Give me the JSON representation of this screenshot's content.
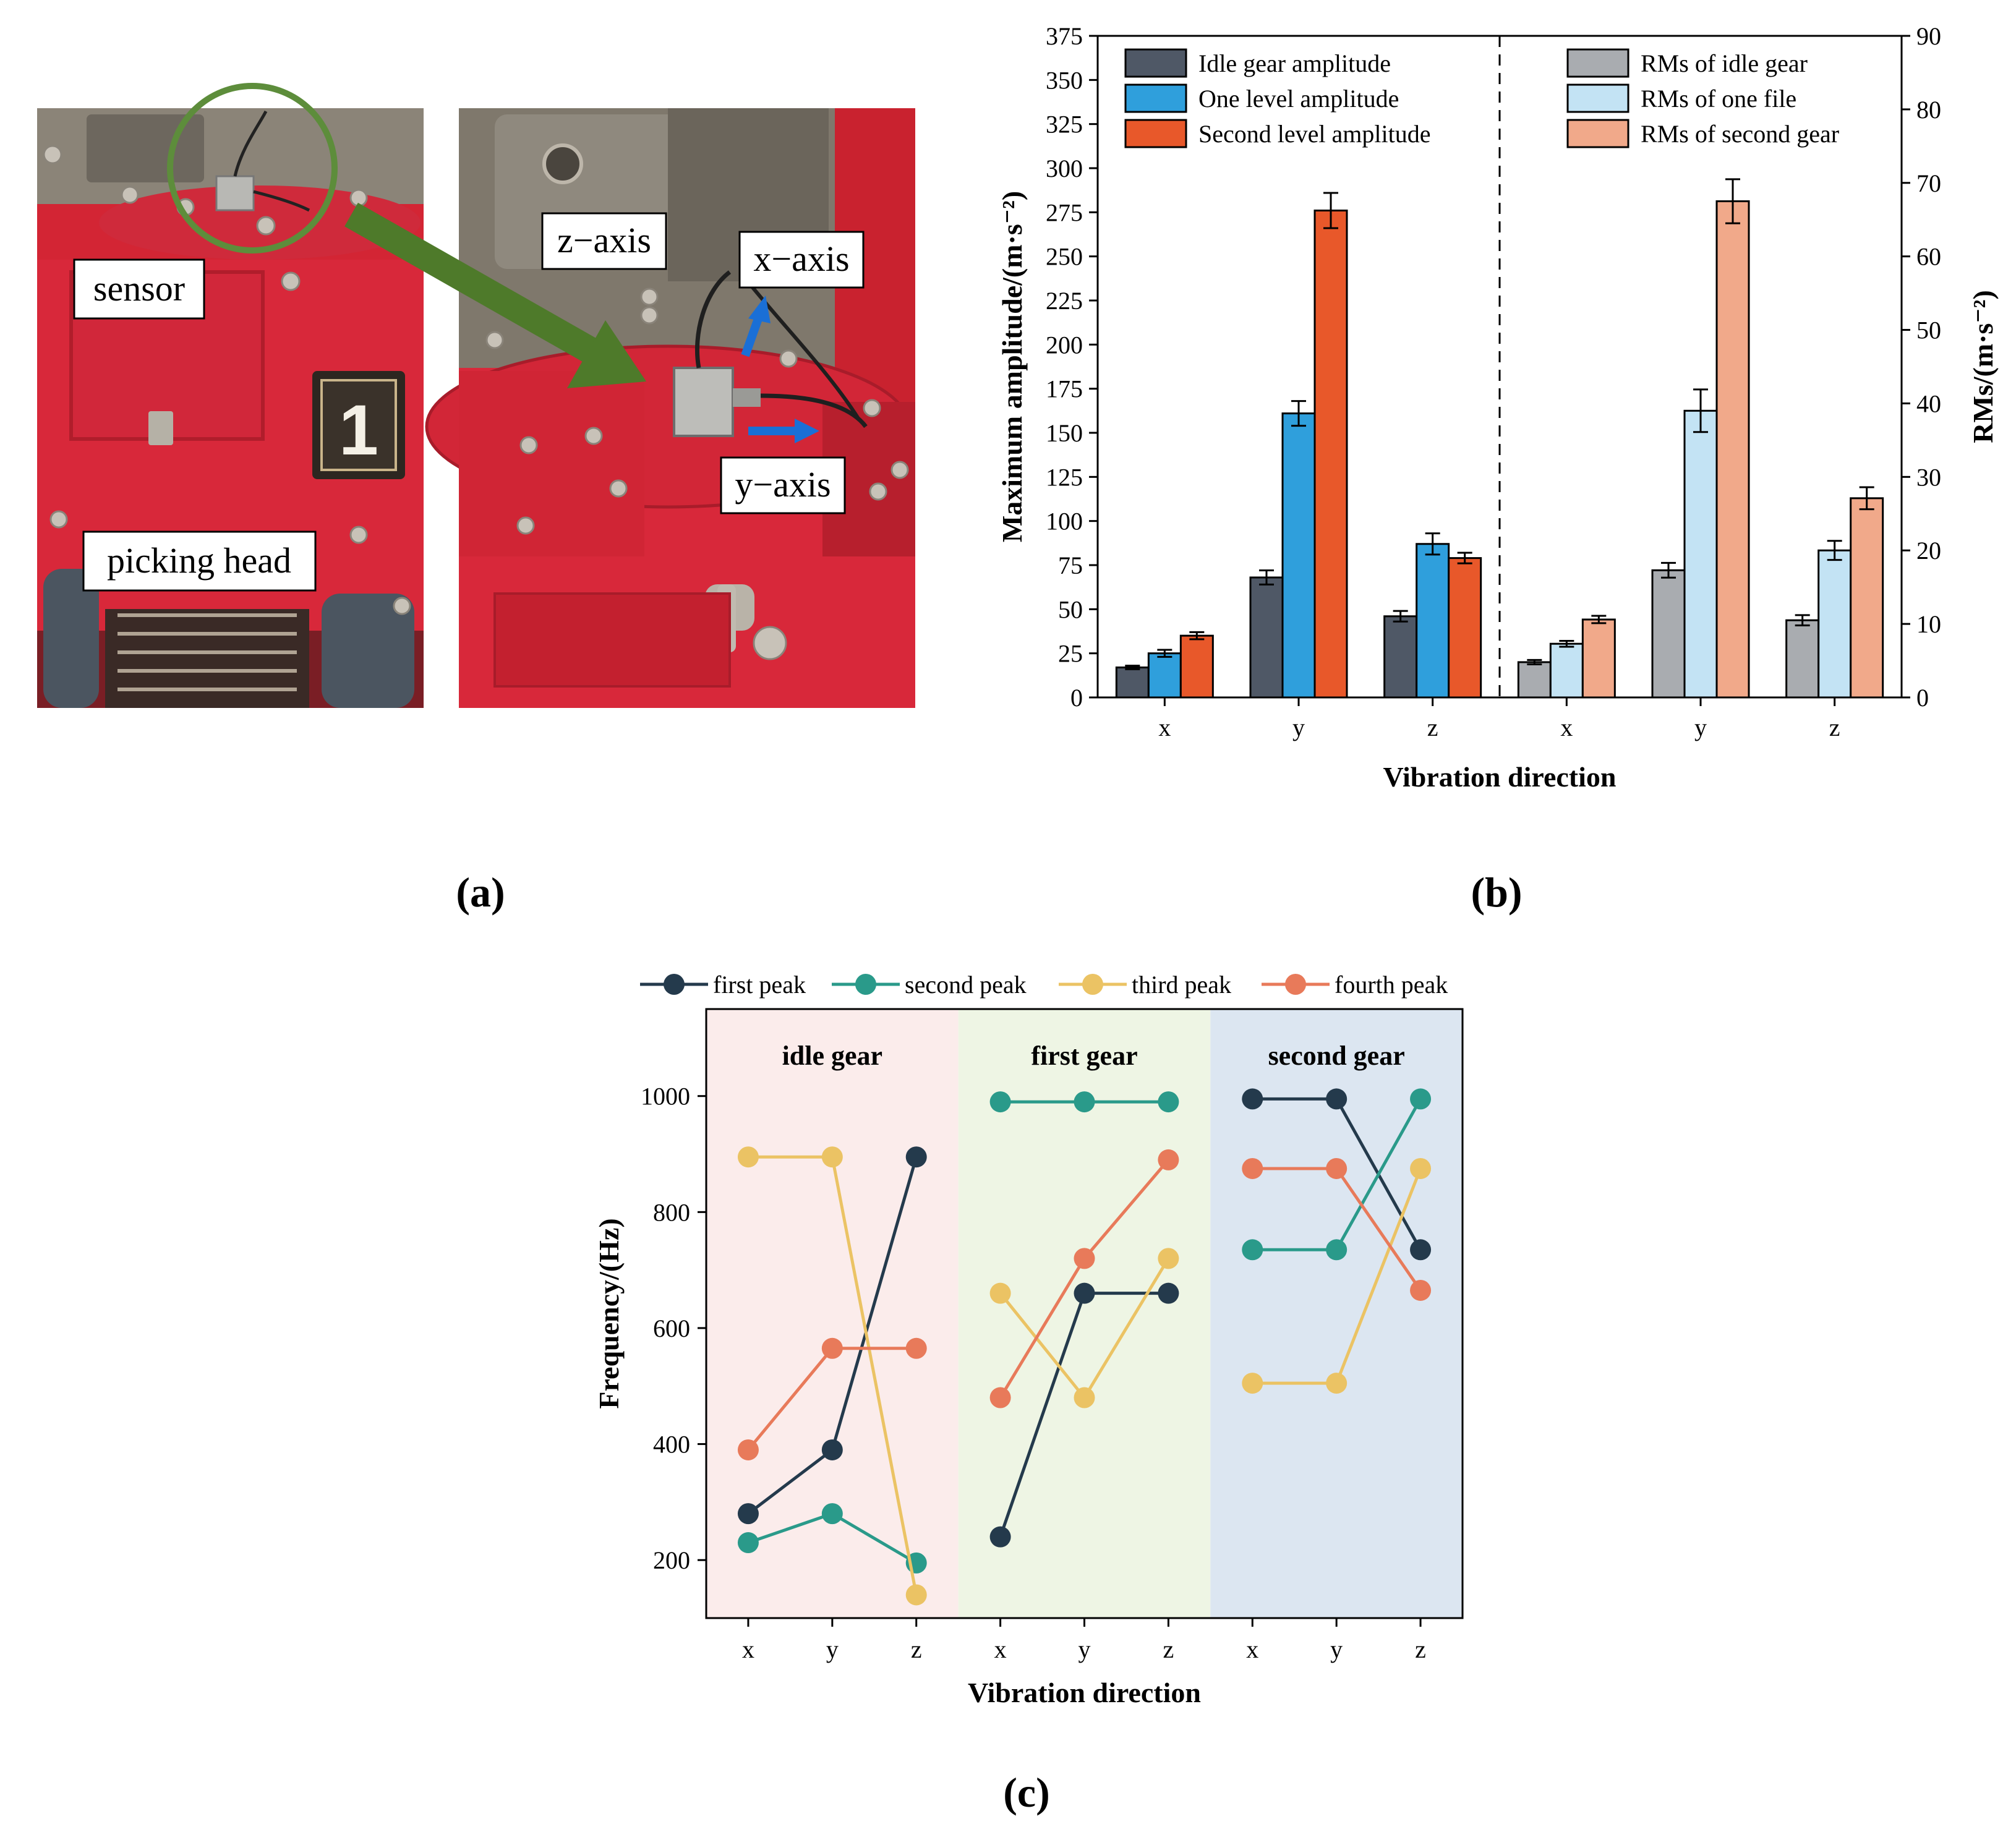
{
  "panels": {
    "a": {
      "caption": "(a)",
      "photo_labels": {
        "sensor": "sensor",
        "picking_head": "picking head",
        "plate_number": "1",
        "z_axis": "z−axis",
        "x_axis": "x−axis",
        "y_axis": "y−axis"
      }
    },
    "b": {
      "caption": "(b)"
    },
    "c": {
      "caption": "(c)"
    }
  },
  "colors": {
    "idle": "#4f5866",
    "one": "#2f9fdc",
    "second": "#e8582a",
    "rms_idle": "#a9acb0",
    "rms_one": "#c3e3f4",
    "rms_second": "#f1a98a",
    "peak1": "#243a4c",
    "peak2": "#2a9a8a",
    "peak3": "#ebc364",
    "peak4": "#e87a5a",
    "bg_idle": "#fbeceb",
    "bg_first": "#eef5e4",
    "bg_second": "#dce6f1",
    "photo_red": "#d8283a"
  },
  "chart_data": [
    {
      "type": "bar",
      "id": "b",
      "xlabel": "Vibration direction",
      "ylabel_left": "Maximum amplitude/(m·s⁻²)",
      "ylabel_right": "RMs/(m·s⁻²)",
      "ylim_left": [
        0,
        375
      ],
      "ylim_right": [
        0,
        90
      ],
      "yticks_left": [
        "0",
        "25",
        "50",
        "75",
        "100",
        "125",
        "150",
        "175",
        "200",
        "225",
        "250",
        "275",
        "300",
        "325",
        "350",
        "375"
      ],
      "yticks_right": [
        "0",
        "10",
        "20",
        "30",
        "40",
        "50",
        "60",
        "70",
        "80",
        "90"
      ],
      "categories_left": [
        "x",
        "y",
        "z"
      ],
      "categories_right": [
        "x",
        "y",
        "z"
      ],
      "series_left": [
        {
          "name": "Idle gear amplitude",
          "color_key": "idle",
          "values": [
            17,
            68,
            46
          ],
          "errors": [
            1,
            4,
            3
          ]
        },
        {
          "name": "One level amplitude",
          "color_key": "one",
          "values": [
            25,
            161,
            87
          ],
          "errors": [
            2,
            7,
            6
          ]
        },
        {
          "name": "Second level amplitude",
          "color_key": "second",
          "values": [
            35,
            276,
            79
          ],
          "errors": [
            2,
            10,
            3
          ]
        }
      ],
      "series_right": [
        {
          "name": "RMs of idle gear",
          "color_key": "rms_idle",
          "values": [
            4.8,
            17.3,
            10.5
          ],
          "errors": [
            0.3,
            1.0,
            0.7
          ]
        },
        {
          "name": "RMs of one file",
          "color_key": "rms_one",
          "values": [
            7.3,
            39.0,
            20.0
          ],
          "errors": [
            0.4,
            2.9,
            1.3
          ]
        },
        {
          "name": "RMs of second gear",
          "color_key": "rms_second",
          "values": [
            10.6,
            67.5,
            27.1
          ],
          "errors": [
            0.5,
            3.0,
            1.5
          ]
        }
      ]
    },
    {
      "type": "line",
      "id": "c",
      "xlabel": "Vibration direction",
      "ylabel": "Frequency/(Hz)",
      "ylim": [
        100,
        1150
      ],
      "yticks": [
        "200",
        "400",
        "600",
        "800",
        "1000"
      ],
      "groups": [
        {
          "name": "idle gear",
          "bg_key": "bg_idle"
        },
        {
          "name": "first gear",
          "bg_key": "bg_first"
        },
        {
          "name": "second gear",
          "bg_key": "bg_second"
        }
      ],
      "x": [
        "x",
        "y",
        "z",
        "x",
        "y",
        "z",
        "x",
        "y",
        "z"
      ],
      "series": [
        {
          "name": "first peak",
          "color_key": "peak1",
          "values": [
            280,
            390,
            895,
            240,
            660,
            660,
            995,
            995,
            735
          ]
        },
        {
          "name": "second peak",
          "color_key": "peak2",
          "values": [
            230,
            280,
            195,
            990,
            990,
            990,
            735,
            735,
            995
          ]
        },
        {
          "name": "third peak",
          "color_key": "peak3",
          "values": [
            895,
            895,
            140,
            660,
            480,
            720,
            505,
            505,
            875
          ]
        },
        {
          "name": "fourth peak",
          "color_key": "peak4",
          "values": [
            390,
            565,
            565,
            480,
            720,
            890,
            875,
            875,
            665
          ]
        }
      ]
    }
  ]
}
